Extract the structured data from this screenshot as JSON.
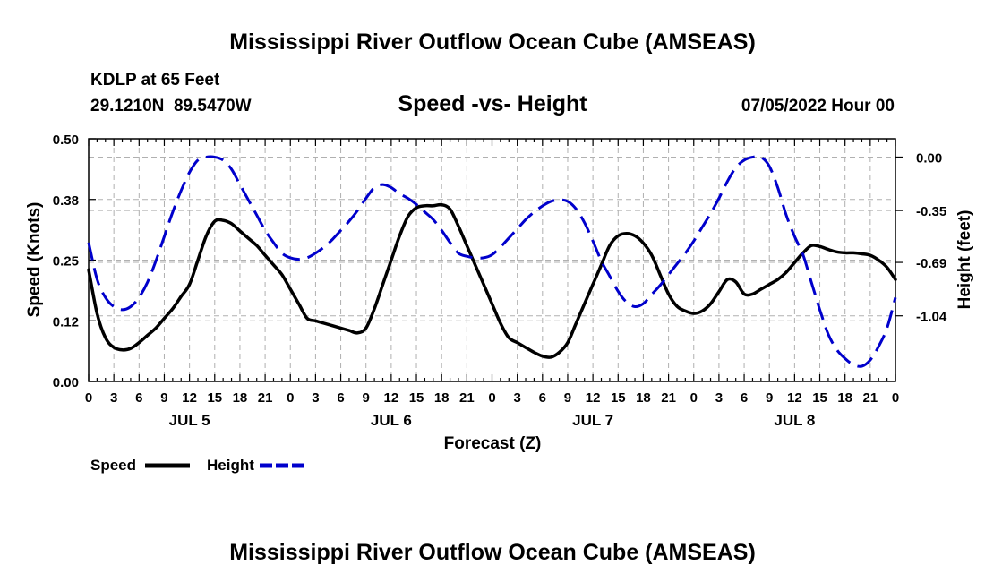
{
  "chart_data": {
    "type": "line",
    "title": "Mississippi River Outflow Ocean Cube (AMSEAS)",
    "footer_title": "Mississippi River Outflow Ocean Cube (AMSEAS)",
    "station": "KDLP at 65 Feet",
    "location": "29.1210N  89.5470W",
    "subtitle": "Speed -vs- Height",
    "run_time": "07/05/2022 Hour 00",
    "xlabel": "Forecast (Z)",
    "ylabel_left": "Speed (Knots)",
    "ylabel_right": "Height (feet)",
    "x_range_hours": [
      0,
      96
    ],
    "ylim_left": [
      0,
      0.5
    ],
    "ylim_right": [
      -1.47,
      0.12
    ],
    "left_ticks": [
      {
        "v": 0,
        "label": "0.00"
      },
      {
        "v": 0.125,
        "label": "0.12"
      },
      {
        "v": 0.25,
        "label": "0.25"
      },
      {
        "v": 0.375,
        "label": "0.38"
      },
      {
        "v": 0.5,
        "label": "0.50"
      }
    ],
    "right_ticks": [
      {
        "v": 0,
        "label": "0.00"
      },
      {
        "v": -0.35,
        "label": "-0.35"
      },
      {
        "v": -0.69,
        "label": "-0.69"
      },
      {
        "v": -1.04,
        "label": "-1.04"
      }
    ],
    "hour_tick_labels": [
      "0",
      "3",
      "6",
      "9",
      "12",
      "15",
      "18",
      "21",
      "0",
      "3",
      "6",
      "9",
      "12",
      "15",
      "18",
      "21",
      "0",
      "3",
      "6",
      "9",
      "12",
      "15",
      "18",
      "21",
      "0",
      "3",
      "6",
      "9",
      "12",
      "15",
      "18",
      "21",
      "0"
    ],
    "day_labels": [
      {
        "hour": 12,
        "label": "JUL 5"
      },
      {
        "hour": 36,
        "label": "JUL 6"
      },
      {
        "hour": 60,
        "label": "JUL 7"
      },
      {
        "hour": 84,
        "label": "JUL 8"
      }
    ],
    "grid": true,
    "series": [
      {
        "name": "Speed",
        "axis": "left",
        "color": "#000000",
        "style": "solid",
        "x": [
          0,
          1,
          2,
          3,
          4,
          5,
          6,
          7,
          8,
          9,
          10,
          11,
          12,
          13,
          14,
          15,
          16,
          17,
          18,
          19,
          20,
          21,
          22,
          23,
          24,
          25,
          26,
          27,
          28,
          29,
          30,
          31,
          32,
          33,
          34,
          35,
          36,
          37,
          38,
          39,
          40,
          41,
          42,
          43,
          44,
          45,
          46,
          47,
          48,
          49,
          50,
          51,
          52,
          53,
          54,
          55,
          56,
          57,
          58,
          59,
          60,
          61,
          62,
          63,
          64,
          65,
          66,
          67,
          68,
          69,
          70,
          71,
          72,
          73,
          74,
          75,
          76,
          77,
          78,
          79,
          80,
          81,
          82,
          83,
          84,
          85,
          86,
          87,
          88,
          89,
          90,
          91,
          92,
          93,
          94,
          95,
          96
        ],
        "values": [
          0.23,
          0.14,
          0.09,
          0.07,
          0.065,
          0.068,
          0.08,
          0.095,
          0.11,
          0.13,
          0.15,
          0.175,
          0.2,
          0.25,
          0.3,
          0.33,
          0.332,
          0.325,
          0.31,
          0.295,
          0.28,
          0.26,
          0.24,
          0.22,
          0.19,
          0.16,
          0.13,
          0.125,
          0.12,
          0.115,
          0.11,
          0.105,
          0.1,
          0.11,
          0.15,
          0.2,
          0.25,
          0.3,
          0.34,
          0.358,
          0.362,
          0.362,
          0.364,
          0.355,
          0.32,
          0.28,
          0.24,
          0.2,
          0.16,
          0.12,
          0.09,
          0.08,
          0.07,
          0.06,
          0.052,
          0.05,
          0.06,
          0.08,
          0.12,
          0.16,
          0.2,
          0.24,
          0.28,
          0.3,
          0.305,
          0.3,
          0.285,
          0.26,
          0.22,
          0.18,
          0.155,
          0.145,
          0.14,
          0.145,
          0.16,
          0.185,
          0.21,
          0.205,
          0.18,
          0.18,
          0.19,
          0.2,
          0.21,
          0.225,
          0.245,
          0.265,
          0.28,
          0.278,
          0.272,
          0.267,
          0.265,
          0.265,
          0.263,
          0.26,
          0.25,
          0.235,
          0.21
        ]
      },
      {
        "name": "Height",
        "axis": "right",
        "color": "#0000cc",
        "style": "dashed",
        "x": [
          0,
          1,
          2,
          3,
          4,
          5,
          6,
          7,
          8,
          9,
          10,
          11,
          12,
          13,
          14,
          15,
          16,
          17,
          18,
          19,
          20,
          21,
          22,
          23,
          24,
          25,
          26,
          27,
          28,
          29,
          30,
          31,
          32,
          33,
          34,
          35,
          36,
          37,
          38,
          39,
          40,
          41,
          42,
          43,
          44,
          45,
          46,
          47,
          48,
          49,
          50,
          51,
          52,
          53,
          54,
          55,
          56,
          57,
          58,
          59,
          60,
          61,
          62,
          63,
          64,
          65,
          66,
          67,
          68,
          69,
          70,
          71,
          72,
          73,
          74,
          75,
          76,
          77,
          78,
          79,
          80,
          81,
          82,
          83,
          84,
          85,
          86,
          87,
          88,
          89,
          90,
          91,
          92,
          93,
          94,
          95,
          96
        ],
        "values": [
          -0.56,
          -0.8,
          -0.92,
          -0.98,
          -1.0,
          -0.98,
          -0.92,
          -0.82,
          -0.68,
          -0.52,
          -0.36,
          -0.22,
          -0.1,
          -0.02,
          0.0,
          0.0,
          -0.02,
          -0.08,
          -0.18,
          -0.28,
          -0.38,
          -0.48,
          -0.56,
          -0.63,
          -0.66,
          -0.67,
          -0.66,
          -0.63,
          -0.59,
          -0.54,
          -0.48,
          -0.42,
          -0.35,
          -0.27,
          -0.2,
          -0.18,
          -0.2,
          -0.24,
          -0.27,
          -0.31,
          -0.36,
          -0.41,
          -0.48,
          -0.56,
          -0.63,
          -0.65,
          -0.66,
          -0.66,
          -0.64,
          -0.59,
          -0.53,
          -0.47,
          -0.41,
          -0.36,
          -0.32,
          -0.29,
          -0.28,
          -0.29,
          -0.34,
          -0.43,
          -0.55,
          -0.68,
          -0.78,
          -0.88,
          -0.95,
          -0.98,
          -0.96,
          -0.9,
          -0.84,
          -0.77,
          -0.7,
          -0.63,
          -0.55,
          -0.46,
          -0.37,
          -0.27,
          -0.16,
          -0.07,
          -0.02,
          0.0,
          0.0,
          -0.06,
          -0.2,
          -0.38,
          -0.52,
          -0.64,
          -0.82,
          -1.0,
          -1.16,
          -1.26,
          -1.32,
          -1.36,
          -1.37,
          -1.33,
          -1.24,
          -1.12,
          -0.92
        ]
      }
    ],
    "legend": {
      "position": "bottom-left",
      "entries": [
        {
          "label": "Speed",
          "color": "#000000",
          "style": "solid"
        },
        {
          "label": "Height",
          "color": "#0000cc",
          "style": "dashed"
        }
      ]
    }
  }
}
